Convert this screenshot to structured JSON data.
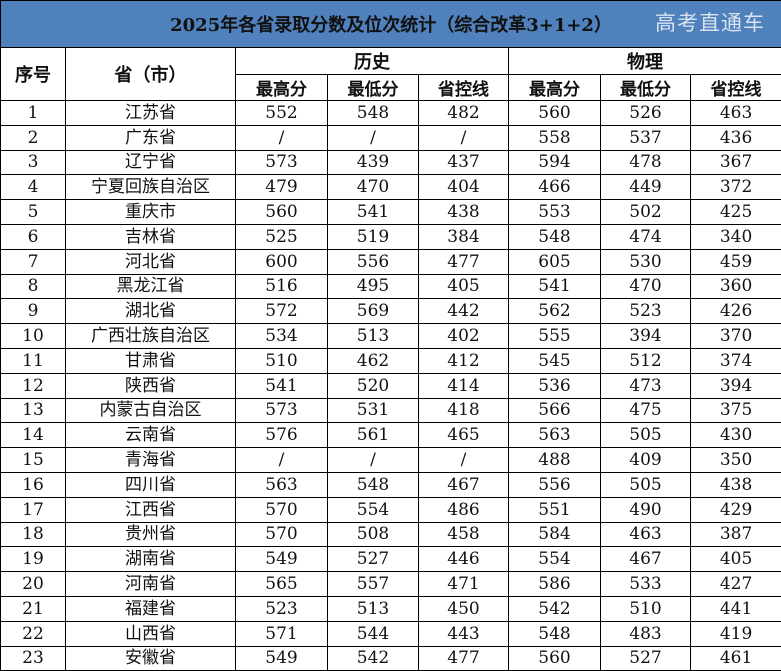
{
  "title": "2025年各省录取分数及位次统计（综合改革3+1+2）",
  "headers": {
    "seq": "序号",
    "province": "省（市）",
    "history": "历史",
    "physics": "物理",
    "sub": [
      "最高分",
      "最低分",
      "省控线",
      "最高分",
      "最低分",
      "省控线"
    ]
  },
  "rows": [
    {
      "seq": "1",
      "province": "江苏省",
      "cells": [
        "552",
        "548",
        "482",
        "560",
        "526",
        "463"
      ]
    },
    {
      "seq": "2",
      "province": "广东省",
      "cells": [
        "/",
        "/",
        "/",
        "558",
        "537",
        "436"
      ]
    },
    {
      "seq": "3",
      "province": "辽宁省",
      "cells": [
        "573",
        "439",
        "437",
        "594",
        "478",
        "367"
      ]
    },
    {
      "seq": "4",
      "province": "宁夏回族自治区",
      "cells": [
        "479",
        "470",
        "404",
        "466",
        "449",
        "372"
      ]
    },
    {
      "seq": "5",
      "province": "重庆市",
      "cells": [
        "560",
        "541",
        "438",
        "553",
        "502",
        "425"
      ]
    },
    {
      "seq": "6",
      "province": "吉林省",
      "cells": [
        "525",
        "519",
        "384",
        "548",
        "474",
        "340"
      ]
    },
    {
      "seq": "7",
      "province": "河北省",
      "cells": [
        "600",
        "556",
        "477",
        "605",
        "530",
        "459"
      ]
    },
    {
      "seq": "8",
      "province": "黑龙江省",
      "cells": [
        "516",
        "495",
        "405",
        "541",
        "470",
        "360"
      ]
    },
    {
      "seq": "9",
      "province": "湖北省",
      "cells": [
        "572",
        "569",
        "442",
        "562",
        "523",
        "426"
      ]
    },
    {
      "seq": "10",
      "province": "广西壮族自治区",
      "cells": [
        "534",
        "513",
        "402",
        "555",
        "394",
        "370"
      ]
    },
    {
      "seq": "11",
      "province": "甘肃省",
      "cells": [
        "510",
        "462",
        "412",
        "545",
        "512",
        "374"
      ]
    },
    {
      "seq": "12",
      "province": "陕西省",
      "cells": [
        "541",
        "520",
        "414",
        "536",
        "473",
        "394"
      ]
    },
    {
      "seq": "13",
      "province": "内蒙古自治区",
      "cells": [
        "573",
        "531",
        "418",
        "566",
        "475",
        "375"
      ]
    },
    {
      "seq": "14",
      "province": "云南省",
      "cells": [
        "576",
        "561",
        "465",
        "563",
        "505",
        "430"
      ]
    },
    {
      "seq": "15",
      "province": "青海省",
      "cells": [
        "/",
        "/",
        "/",
        "488",
        "409",
        "350"
      ]
    },
    {
      "seq": "16",
      "province": "四川省",
      "cells": [
        "563",
        "548",
        "467",
        "556",
        "505",
        "438"
      ]
    },
    {
      "seq": "17",
      "province": "江西省",
      "cells": [
        "570",
        "554",
        "486",
        "551",
        "490",
        "429"
      ]
    },
    {
      "seq": "18",
      "province": "贵州省",
      "cells": [
        "570",
        "508",
        "458",
        "584",
        "463",
        "387"
      ]
    },
    {
      "seq": "19",
      "province": "湖南省",
      "cells": [
        "549",
        "527",
        "446",
        "554",
        "467",
        "405"
      ]
    },
    {
      "seq": "20",
      "province": "河南省",
      "cells": [
        "565",
        "557",
        "471",
        "586",
        "533",
        "427"
      ]
    },
    {
      "seq": "21",
      "province": "福建省",
      "cells": [
        "523",
        "513",
        "450",
        "542",
        "510",
        "441"
      ]
    },
    {
      "seq": "22",
      "province": "山西省",
      "cells": [
        "571",
        "544",
        "443",
        "548",
        "483",
        "419"
      ]
    },
    {
      "seq": "23",
      "province": "安徽省",
      "cells": [
        "549",
        "542",
        "477",
        "560",
        "527",
        "461"
      ]
    }
  ],
  "watermark": "高考直通车",
  "colors": {
    "title_bg": "#4f81bd"
  }
}
